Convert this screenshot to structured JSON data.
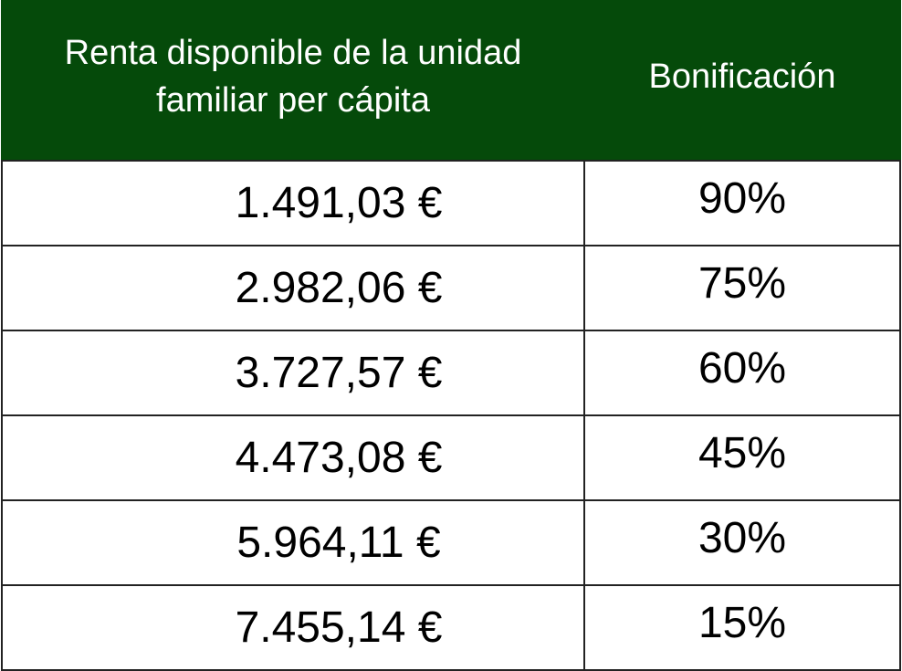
{
  "table": {
    "headers": [
      "Renta disponible de la unidad familiar per cápita",
      "Bonificación"
    ],
    "header_lines": [
      "Renta disponible de la unidad",
      "familiar per cápita"
    ],
    "rows": [
      {
        "renta": "1.491,03 €",
        "bonificacion": "90%"
      },
      {
        "renta": "2.982,06 €",
        "bonificacion": "75%"
      },
      {
        "renta": "3.727,57 €",
        "bonificacion": "60%"
      },
      {
        "renta": "4.473,08 €",
        "bonificacion": "45%"
      },
      {
        "renta": "5.964,11 €",
        "bonificacion": "30%"
      },
      {
        "renta": "7.455,14 €",
        "bonificacion": "15%"
      }
    ]
  },
  "colors": {
    "header_background": "#054a0a",
    "header_text": "#ffffff",
    "border": "#222222"
  }
}
